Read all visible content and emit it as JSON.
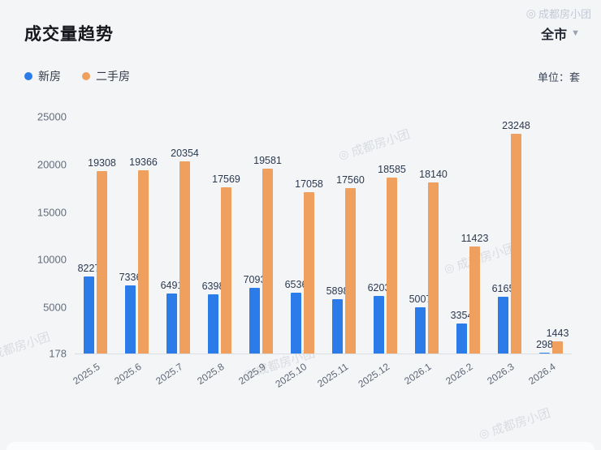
{
  "header": {
    "title": "成交量趋势",
    "region_selector": {
      "label": "全市"
    }
  },
  "legend": {
    "items": [
      {
        "label": "新房"
      },
      {
        "label": "二手房"
      }
    ],
    "unit_label": "单位：套"
  },
  "watermark": {
    "text": "成都房小团"
  },
  "chart_data": {
    "type": "bar",
    "title": "成交量趋势",
    "unit": "套",
    "categories": [
      "2025.5",
      "2025.6",
      "2025.7",
      "2025.8",
      "2025.9",
      "2025.10",
      "2025.11",
      "2025.12",
      "2026.1",
      "2026.2",
      "2026.3",
      "2026.4"
    ],
    "series": [
      {
        "name": "新房",
        "color": "#2b7ce9",
        "values": [
          8227,
          7336,
          6491,
          6398,
          7093,
          6536,
          5898,
          6203,
          5007,
          3354,
          6165,
          298
        ]
      },
      {
        "name": "二手房",
        "color": "#f0a05e",
        "values": [
          19308,
          19366,
          20354,
          17569,
          19581,
          17058,
          17560,
          18585,
          18140,
          11423,
          23248,
          1443
        ]
      }
    ],
    "y_ticks": [
      178,
      5000,
      10000,
      15000,
      20000,
      25000
    ],
    "ylim": [
      178,
      25000
    ],
    "grid": false,
    "legend_position": "top-left",
    "data_labels": true
  }
}
